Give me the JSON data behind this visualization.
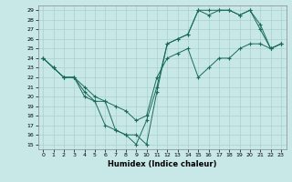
{
  "xlabel": "Humidex (Indice chaleur)",
  "bg_color": "#c8e8e8",
  "grid_color": "#a8d0d0",
  "line_color": "#1a6b5a",
  "xlim": [
    -0.5,
    23.5
  ],
  "ylim": [
    14.5,
    29.5
  ],
  "xticks": [
    0,
    1,
    2,
    3,
    4,
    5,
    6,
    7,
    8,
    9,
    10,
    11,
    12,
    13,
    14,
    15,
    16,
    17,
    18,
    19,
    20,
    21,
    22,
    23
  ],
  "yticks": [
    15,
    16,
    17,
    18,
    19,
    20,
    21,
    22,
    23,
    24,
    25,
    26,
    27,
    28,
    29
  ],
  "series": [
    {
      "x": [
        0,
        1,
        2,
        3,
        4,
        5,
        6,
        7,
        8,
        9,
        10,
        11,
        12,
        13,
        14,
        15,
        16,
        17,
        18,
        19,
        20,
        21,
        22,
        23
      ],
      "y": [
        24,
        23,
        22,
        22,
        21,
        20,
        19.5,
        19,
        18.5,
        17.5,
        18,
        22,
        24,
        24.5,
        25,
        22,
        23,
        24,
        24,
        25,
        25.5,
        25.5,
        25,
        25.5
      ]
    },
    {
      "x": [
        0,
        1,
        2,
        3,
        4,
        5,
        6,
        7,
        8,
        9,
        10,
        11,
        12,
        13,
        14,
        15,
        16,
        17,
        18,
        19,
        20,
        21,
        22,
        23
      ],
      "y": [
        24,
        23,
        22,
        22,
        20.5,
        19.5,
        19.5,
        16.5,
        16,
        16,
        15,
        20.5,
        25.5,
        26,
        26.5,
        29,
        29,
        29,
        29,
        28.5,
        29,
        27.5,
        25,
        25.5
      ]
    },
    {
      "x": [
        0,
        1,
        2,
        3,
        4,
        5,
        6,
        7,
        8,
        9,
        10,
        11,
        12,
        13,
        14,
        15,
        16,
        17,
        18,
        19,
        20,
        21,
        22,
        23
      ],
      "y": [
        24,
        23,
        22,
        22,
        20,
        19.5,
        17,
        16.5,
        16,
        15,
        17.5,
        21,
        25.5,
        26,
        26.5,
        29,
        28.5,
        29,
        29,
        28.5,
        29,
        27,
        25,
        25.5
      ]
    }
  ]
}
